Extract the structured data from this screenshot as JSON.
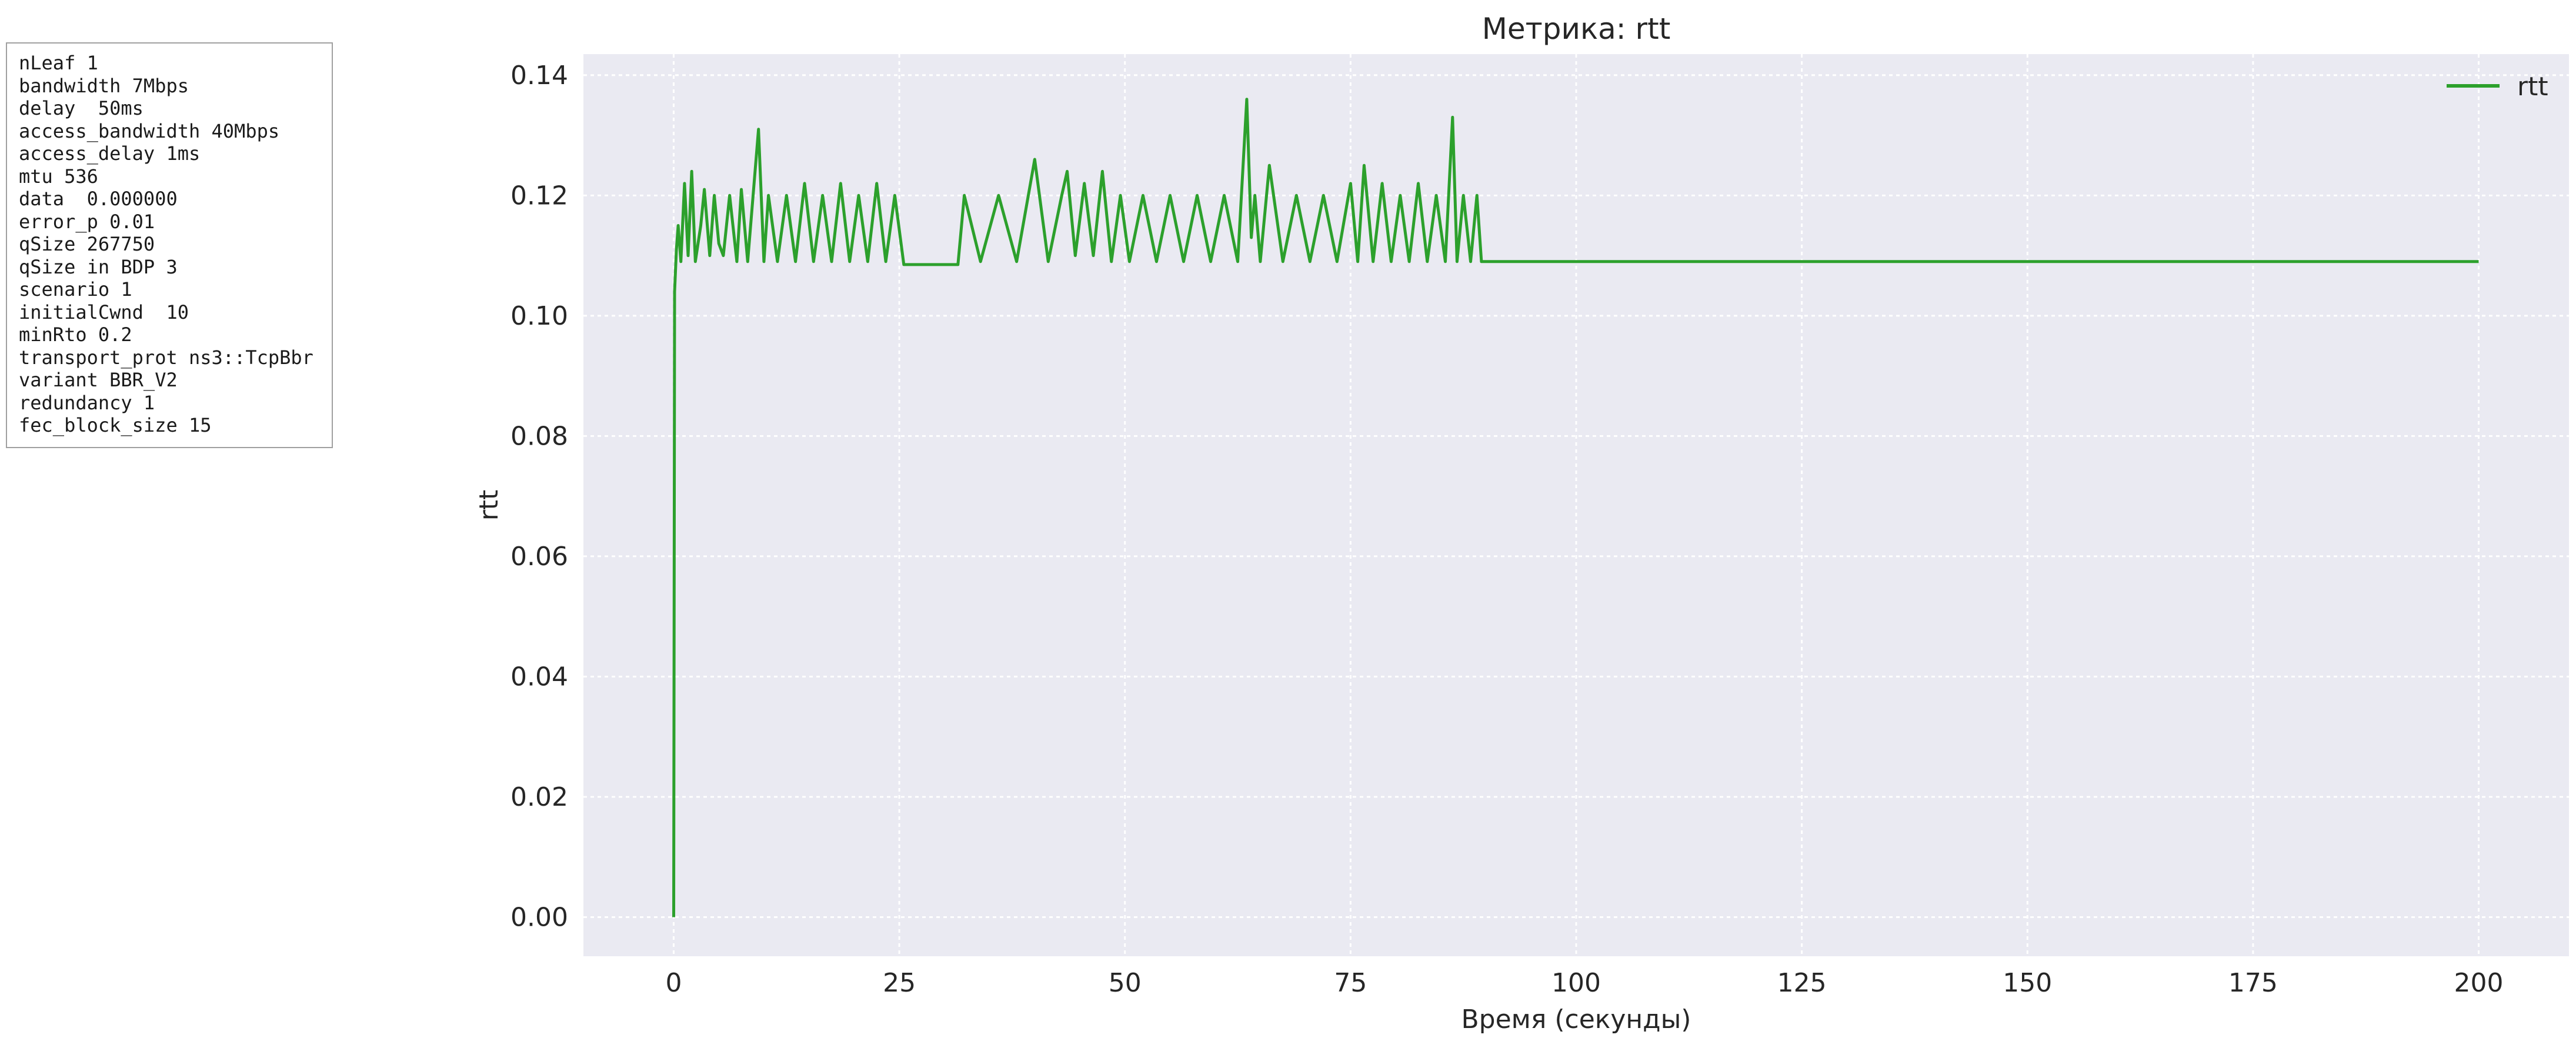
{
  "params": [
    "nLeaf 1",
    "bandwidth 7Mbps",
    "delay  50ms",
    "access_bandwidth 40Mbps",
    "access_delay 1ms",
    "mtu 536",
    "data  0.000000",
    "error_p 0.01",
    "qSize 267750",
    "qSize in BDP 3",
    "scenario 1",
    "initialCwnd  10",
    "minRto 0.2",
    "transport_prot ns3::TcpBbr",
    "variant BBR_V2",
    "redundancy 1",
    "fec_block_size 15"
  ],
  "chart_data": {
    "type": "line",
    "title": "Метрика: rtt",
    "xlabel": "Время (секунды)",
    "ylabel": "rtt",
    "xlim": [
      -10,
      210
    ],
    "ylim": [
      -0.0065,
      0.1435
    ],
    "xticks": [
      0,
      25,
      50,
      75,
      100,
      125,
      150,
      175,
      200
    ],
    "yticks": [
      0.0,
      0.02,
      0.04,
      0.06,
      0.08,
      0.1,
      0.12,
      0.14
    ],
    "grid": true,
    "legend_position": "top-right",
    "colors": {
      "series": "#2ca02c",
      "plot_bg": "#eaeaf2",
      "grid": "#ffffff"
    },
    "series": [
      {
        "name": "rtt",
        "x": [
          0,
          0.1,
          0.3,
          0.5,
          0.8,
          1.2,
          1.6,
          2.0,
          2.4,
          3.0,
          3.4,
          4.0,
          4.5,
          5.0,
          5.5,
          6.2,
          7.0,
          7.5,
          8.2,
          8.8,
          9.4,
          10.0,
          10.5,
          11.5,
          12.5,
          13.5,
          14.5,
          15.5,
          16.5,
          17.5,
          18.5,
          19.5,
          20.5,
          21.5,
          22.5,
          23.5,
          24.5,
          25.5,
          28.0,
          31.5,
          32.2,
          34.0,
          36.0,
          38.0,
          40.0,
          41.5,
          43.0,
          43.6,
          44.5,
          45.5,
          46.5,
          47.5,
          48.5,
          49.5,
          50.5,
          52.0,
          53.5,
          55.0,
          56.5,
          58.0,
          59.5,
          61.0,
          62.5,
          63.5,
          64.0,
          64.4,
          65.0,
          66.0,
          67.5,
          69.0,
          70.5,
          72.0,
          73.5,
          75.0,
          75.8,
          76.5,
          77.5,
          78.5,
          79.5,
          80.5,
          81.5,
          82.5,
          83.5,
          84.5,
          85.5,
          86.3,
          86.8,
          87.5,
          88.3,
          89.0,
          89.5,
          90.0,
          95.0,
          100.0,
          200.0
        ],
        "y": [
          0.0,
          0.104,
          0.111,
          0.115,
          0.109,
          0.122,
          0.11,
          0.124,
          0.109,
          0.115,
          0.121,
          0.11,
          0.12,
          0.112,
          0.11,
          0.12,
          0.109,
          0.121,
          0.109,
          0.12,
          0.131,
          0.109,
          0.12,
          0.109,
          0.12,
          0.109,
          0.122,
          0.109,
          0.12,
          0.109,
          0.122,
          0.109,
          0.12,
          0.109,
          0.122,
          0.109,
          0.12,
          0.1085,
          0.1085,
          0.1085,
          0.12,
          0.109,
          0.12,
          0.109,
          0.126,
          0.109,
          0.12,
          0.124,
          0.11,
          0.122,
          0.11,
          0.124,
          0.109,
          0.12,
          0.109,
          0.12,
          0.109,
          0.12,
          0.109,
          0.12,
          0.109,
          0.12,
          0.109,
          0.136,
          0.113,
          0.12,
          0.109,
          0.125,
          0.109,
          0.12,
          0.109,
          0.12,
          0.109,
          0.122,
          0.109,
          0.125,
          0.109,
          0.122,
          0.109,
          0.12,
          0.109,
          0.122,
          0.109,
          0.12,
          0.109,
          0.133,
          0.109,
          0.12,
          0.109,
          0.12,
          0.109,
          0.109,
          0.109,
          0.109,
          0.109
        ]
      }
    ]
  }
}
